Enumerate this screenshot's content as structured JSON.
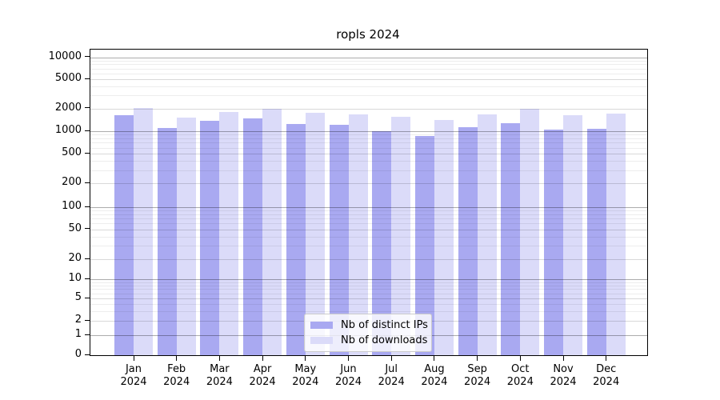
{
  "title": "ropls 2024",
  "legend": {
    "items": [
      {
        "label": "Nb of distinct IPs",
        "color": "#a9a9f1"
      },
      {
        "label": "Nb of downloads",
        "color": "#dbdbf9"
      }
    ]
  },
  "y_axis": {
    "tick_labels": [
      "0",
      "1",
      "2",
      "5",
      "10",
      "20",
      "50",
      "100",
      "200",
      "500",
      "1000",
      "2000",
      "5000",
      "10000"
    ]
  },
  "x_axis": {
    "months": [
      {
        "line1": "Jan",
        "line2": "2024"
      },
      {
        "line1": "Feb",
        "line2": "2024"
      },
      {
        "line1": "Mar",
        "line2": "2024"
      },
      {
        "line1": "Apr",
        "line2": "2024"
      },
      {
        "line1": "May",
        "line2": "2024"
      },
      {
        "line1": "Jun",
        "line2": "2024"
      },
      {
        "line1": "Jul",
        "line2": "2024"
      },
      {
        "line1": "Aug",
        "line2": "2024"
      },
      {
        "line1": "Sep",
        "line2": "2024"
      },
      {
        "line1": "Oct",
        "line2": "2024"
      },
      {
        "line1": "Nov",
        "line2": "2024"
      },
      {
        "line1": "Dec",
        "line2": "2024"
      }
    ]
  },
  "chart_data": {
    "type": "bar",
    "title": "ropls 2024",
    "categories": [
      "Jan 2024",
      "Feb 2024",
      "Mar 2024",
      "Apr 2024",
      "May 2024",
      "Jun 2024",
      "Jul 2024",
      "Aug 2024",
      "Sep 2024",
      "Oct 2024",
      "Nov 2024",
      "Dec 2024"
    ],
    "series": [
      {
        "name": "Nb of distinct IPs",
        "color": "#a9a9f1",
        "values": [
          1615,
          1095,
          1370,
          1485,
          1235,
          1215,
          1010,
          860,
          1140,
          1285,
          1060,
          1075
        ]
      },
      {
        "name": "Nb of downloads",
        "color": "#dbdbf9",
        "values": [
          2040,
          1520,
          1780,
          2000,
          1755,
          1670,
          1540,
          1395,
          1660,
          1980,
          1640,
          1710
        ]
      }
    ],
    "yscale": "symlog",
    "y_ticks": [
      0,
      1,
      2,
      5,
      10,
      20,
      50,
      100,
      200,
      500,
      1000,
      2000,
      5000,
      10000
    ],
    "ylim": [
      0,
      12600
    ],
    "xlabel": "",
    "ylabel": "",
    "grid": true,
    "grid_on_top_of_bars": true,
    "legend_position": "lower center"
  }
}
